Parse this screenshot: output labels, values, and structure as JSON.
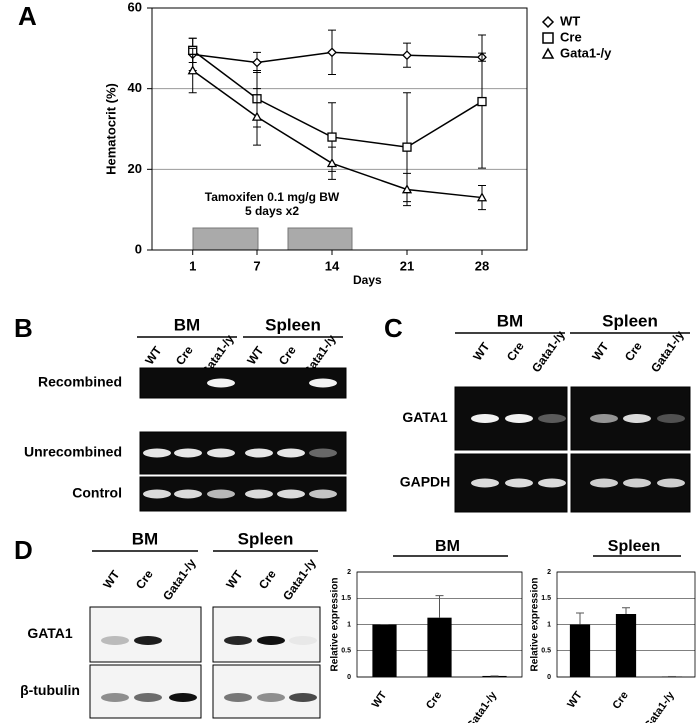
{
  "panel_labels": [
    "A",
    "B",
    "C",
    "D"
  ],
  "chart_data": [
    {
      "type": "line",
      "xlabel": "Days",
      "ylabel": "Hematocrit (%)",
      "x": [
        1,
        7,
        14,
        21,
        28
      ],
      "xlim": [
        -2.8,
        32.2
      ],
      "xticks": [
        1,
        7,
        14,
        21,
        28
      ],
      "ylim": [
        0,
        60
      ],
      "yticks": [
        0,
        20,
        40,
        60
      ],
      "grid": true,
      "legend": "top-right",
      "annotations": [
        "Tamoxifen 0.1 mg/g BW",
        "5 days x2"
      ],
      "series": [
        {
          "name": "WT",
          "marker": "diamond",
          "color": "#000000",
          "values": [
            48.5,
            46.5,
            49,
            48.3,
            47.8
          ],
          "errors": [
            4,
            2.5,
            5.5,
            3,
            1
          ]
        },
        {
          "name": "Cre",
          "marker": "square",
          "color": "#000000",
          "values": [
            49.5,
            37.5,
            28,
            25.5,
            36.8
          ],
          "errors": [
            3,
            7,
            8.5,
            13.5,
            16.5
          ]
        },
        {
          "name": "Gata1-/y",
          "marker": "triangle",
          "color": "#000000",
          "values": [
            44.5,
            33,
            21.5,
            15,
            13
          ],
          "errors": [
            5.5,
            7,
            4,
            4,
            3
          ]
        }
      ]
    },
    {
      "type": "bar",
      "title": "BM",
      "ylabel": "Relative expression",
      "categories": [
        "WT",
        "Cre",
        "Gata1-/y"
      ],
      "values": [
        1,
        1.13,
        0.02
      ],
      "errors": [
        0,
        0.42,
        0
      ],
      "color": "#000000",
      "ylim": [
        0,
        2
      ],
      "yticks": [
        0,
        0.5,
        1,
        1.5,
        2
      ],
      "grid": true
    },
    {
      "type": "bar",
      "title": "Spleen",
      "ylabel": "Relative expression",
      "categories": [
        "WT",
        "Cre",
        "Gata1-/y"
      ],
      "values": [
        1,
        1.2,
        0.01
      ],
      "errors": [
        0.22,
        0.12,
        0
      ],
      "color": "#000000",
      "ylim": [
        0,
        2
      ],
      "yticks": [
        0,
        0.5,
        1,
        1.5,
        2
      ],
      "grid": true
    }
  ],
  "gel_b": {
    "groups": [
      "BM",
      "Spleen"
    ],
    "lanes": [
      "WT",
      "Cre",
      "Gata1-/y",
      "WT",
      "Cre",
      "Gata1-/y"
    ],
    "rows": [
      "Recombined",
      "Unrecombined",
      "Control"
    ]
  },
  "gel_c": {
    "groups": [
      "BM",
      "Spleen"
    ],
    "lanes": [
      "WT",
      "Cre",
      "Gata1-/y",
      "WT",
      "Cre",
      "Gata1-/y"
    ],
    "rows": [
      "GATA1",
      "GAPDH"
    ]
  },
  "blot_d": {
    "groups": [
      "BM",
      "Spleen"
    ],
    "lanes": [
      "WT",
      "Cre",
      "Gata1-/y",
      "WT",
      "Cre",
      "Gata1-/y"
    ],
    "rows": [
      "GATA1",
      "β-tubulin"
    ]
  }
}
